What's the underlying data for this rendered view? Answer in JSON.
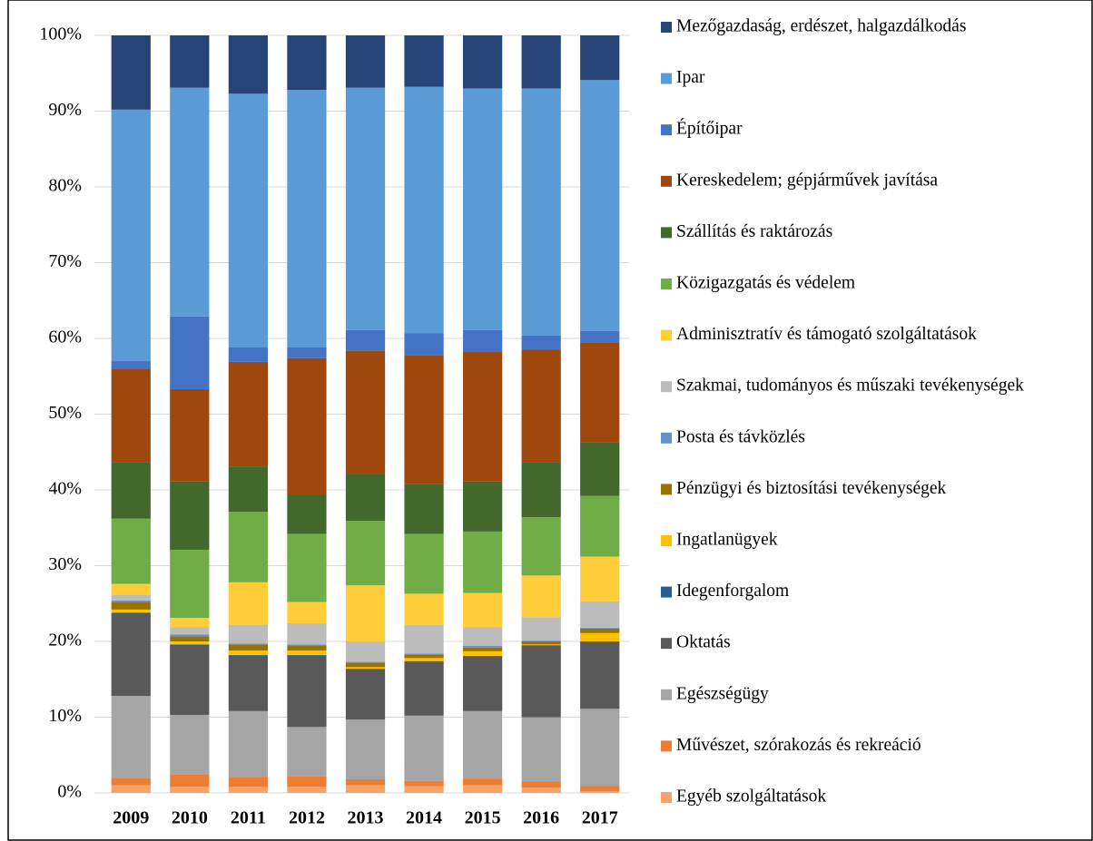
{
  "chart_data": {
    "type": "stacked_bar_100",
    "categories": [
      "2009",
      "2010",
      "2011",
      "2012",
      "2013",
      "2014",
      "2015",
      "2016",
      "2017"
    ],
    "ylim": [
      0,
      100
    ],
    "yticks": [
      {
        "value": 0,
        "label": "0%"
      },
      {
        "value": 10,
        "label": "10%"
      },
      {
        "value": 20,
        "label": "20%"
      },
      {
        "value": 30,
        "label": "30%"
      },
      {
        "value": 40,
        "label": "40%"
      },
      {
        "value": 50,
        "label": "50%"
      },
      {
        "value": 60,
        "label": "60%"
      },
      {
        "value": 70,
        "label": "70%"
      },
      {
        "value": 80,
        "label": "80%"
      },
      {
        "value": 90,
        "label": "90%"
      },
      {
        "value": 100,
        "label": "100%"
      }
    ],
    "grid": true,
    "legend": "right",
    "series": [
      {
        "name": "Mezőgazdaság, erdészet, halgazdálkodás",
        "color": "#264478",
        "values": [
          9.8,
          6.9,
          7.7,
          7.2,
          6.9,
          6.8,
          7.0,
          7.0,
          5.9
        ]
      },
      {
        "name": "Ipar",
        "color": "#5b9bd5",
        "values": [
          33.2,
          30.2,
          33.5,
          34.0,
          32.0,
          32.5,
          31.9,
          32.6,
          33.1
        ]
      },
      {
        "name": "Építőipar",
        "color": "#4472c4",
        "values": [
          1.0,
          9.6,
          1.9,
          1.4,
          2.7,
          2.9,
          2.9,
          1.9,
          1.5
        ]
      },
      {
        "name": "Kereskedelem; gépjárművek javítása",
        "color": "#9e480e",
        "values": [
          12.4,
          12.2,
          13.8,
          18.0,
          16.3,
          17.0,
          17.1,
          14.8,
          13.2
        ]
      },
      {
        "name": "Szállítás és raktározás",
        "color": "#43682b",
        "values": [
          7.4,
          9.0,
          6.0,
          5.2,
          6.2,
          6.6,
          6.6,
          7.3,
          7.1
        ]
      },
      {
        "name": "Közigazgatás és védelem",
        "color": "#70ad47",
        "values": [
          8.6,
          9.0,
          9.3,
          9.0,
          8.5,
          7.9,
          8.1,
          7.7,
          8.0
        ]
      },
      {
        "name": "Adminisztratív és támogató szolgáltatások",
        "color": "#ffcd3a",
        "values": [
          1.4,
          1.2,
          5.6,
          2.8,
          7.4,
          4.1,
          4.5,
          5.5,
          5.9
        ]
      },
      {
        "name": "Szakmai, tudományos és műszaki tevékenységek",
        "color": "#bcbcbc",
        "values": [
          0.8,
          1.0,
          2.5,
          2.8,
          2.7,
          3.8,
          2.5,
          3.1,
          3.5
        ]
      },
      {
        "name": "Posta és távközlés",
        "color": "#698ed0",
        "values": [
          0.2,
          0.2,
          0.1,
          0.1,
          0.1,
          0.1,
          0.2,
          0.1,
          0.1
        ]
      },
      {
        "name": "Pénzügyi és biztosítási tevékenységek",
        "color": "#997300",
        "values": [
          1.0,
          0.7,
          0.8,
          0.7,
          0.6,
          0.5,
          0.5,
          0.4,
          0.6
        ]
      },
      {
        "name": "Ingatlanügyek",
        "color": "#ffc000",
        "values": [
          0.4,
          0.4,
          0.6,
          0.6,
          0.2,
          0.4,
          0.6,
          0.1,
          1.1
        ]
      },
      {
        "name": "Idegenforgalom",
        "color": "#255e91",
        "values": [
          0.2,
          0.2,
          0.1,
          0.1,
          0.1,
          0.1,
          0.1,
          0.1,
          0.1
        ]
      },
      {
        "name": "Oktatás",
        "color": "#595959",
        "values": [
          10.8,
          9.1,
          7.3,
          9.4,
          6.6,
          7.1,
          7.2,
          9.4,
          8.8
        ]
      },
      {
        "name": "Egészségügy",
        "color": "#a5a5a5",
        "values": [
          10.8,
          7.9,
          8.7,
          6.5,
          7.9,
          8.6,
          8.9,
          8.5,
          10.2
        ]
      },
      {
        "name": "Művészet, szórakozás és rekreáció",
        "color": "#ed7d31",
        "values": [
          1.0,
          1.6,
          1.3,
          1.4,
          0.8,
          0.7,
          0.9,
          0.8,
          0.7
        ]
      },
      {
        "name": "Egyéb szolgáltatások",
        "color": "#f4a36b",
        "values": [
          1.0,
          0.8,
          0.8,
          0.8,
          1.0,
          0.9,
          1.0,
          0.7,
          0.2
        ]
      }
    ]
  }
}
